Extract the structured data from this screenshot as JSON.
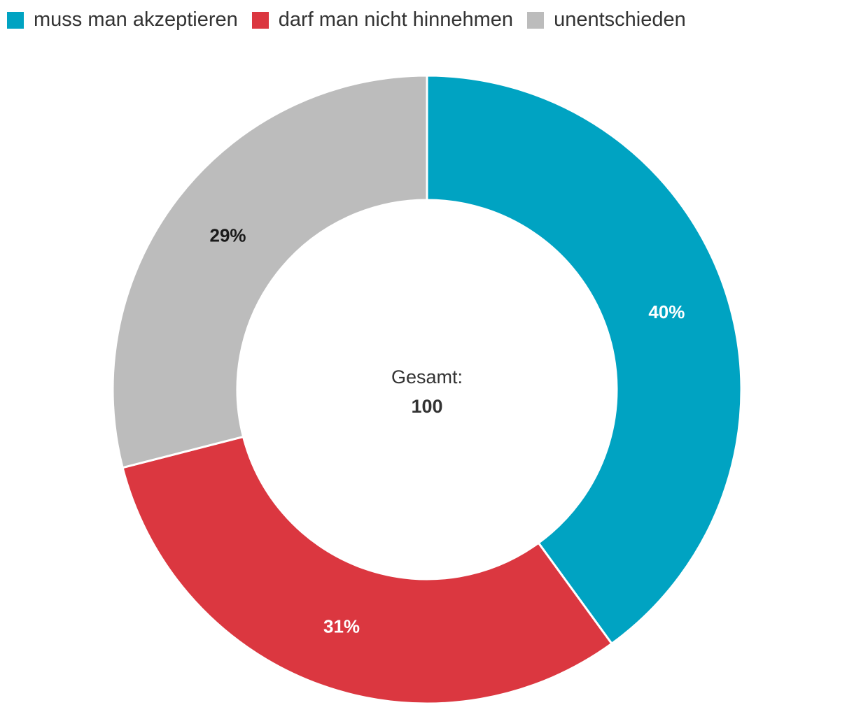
{
  "chart_data": {
    "type": "pie",
    "variant": "donut",
    "categories": [
      "muss man akzeptieren",
      "darf man nicht hinnehmen",
      "unentschieden"
    ],
    "values": [
      40,
      31,
      29
    ],
    "labels": [
      "40%",
      "31%",
      "29%"
    ],
    "colors": [
      "#00a3c2",
      "#db3740",
      "#bcbcbc"
    ],
    "label_colors": [
      "#ffffff",
      "#ffffff",
      "#1a1a1a"
    ],
    "center_label": "Gesamt:",
    "center_value": "100",
    "legend_position": "top-left"
  }
}
